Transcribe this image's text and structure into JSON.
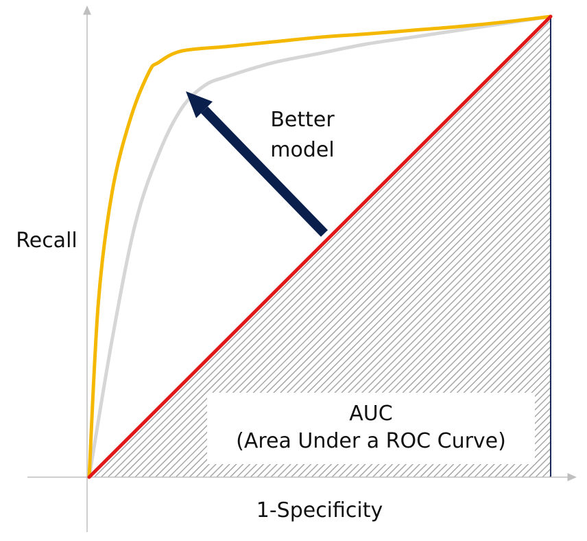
{
  "chart_data": {
    "type": "line",
    "xlabel": "1-Specificity",
    "ylabel": "Recall",
    "xlim": [
      0,
      1
    ],
    "ylim": [
      0,
      1
    ],
    "grid": false,
    "series": [
      {
        "color": "#f5b800",
        "x": [
          0,
          0.02,
          0.05,
          0.09,
          0.13,
          0.15,
          0.2,
          0.3,
          0.4,
          0.5,
          0.6,
          0.7,
          0.8,
          0.9,
          1.0
        ],
        "y": [
          0,
          0.38,
          0.62,
          0.78,
          0.88,
          0.9,
          0.925,
          0.935,
          0.945,
          0.955,
          0.962,
          0.97,
          0.978,
          0.988,
          1.0
        ]
      },
      {
        "color": "#d6d6d6",
        "x": [
          0,
          0.05,
          0.1,
          0.15,
          0.2,
          0.25,
          0.3,
          0.4,
          0.5,
          0.6,
          0.7,
          0.8,
          0.9,
          1.0
        ],
        "y": [
          0,
          0.3,
          0.55,
          0.7,
          0.8,
          0.85,
          0.87,
          0.9,
          0.92,
          0.94,
          0.955,
          0.97,
          0.985,
          1.0
        ]
      },
      {
        "color": "#e01818",
        "x": [
          0,
          1
        ],
        "y": [
          0,
          1
        ]
      }
    ],
    "annotations": {
      "better_model": [
        "Better",
        "model"
      ],
      "auc": [
        "AUC",
        "(Area Under a ROC Curve)"
      ]
    },
    "colors": {
      "arrow": "#0b1f4d",
      "axis": "#bfbfbf",
      "hatch": "#a6a6a6",
      "right_edge": "#1a2a5a"
    }
  }
}
